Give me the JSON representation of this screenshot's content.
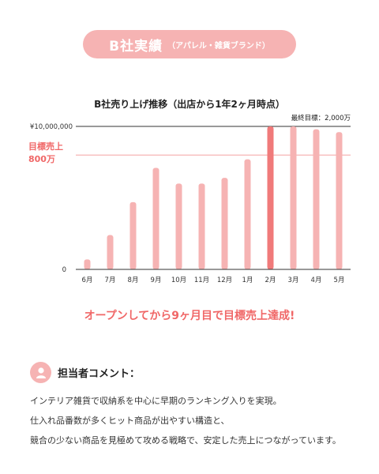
{
  "header": {
    "title": "B社実績",
    "subtitle": "（アパレル・雑貨ブランド）"
  },
  "chart_data": {
    "type": "bar",
    "title": "B社売り上げ推移（出店から1年2ヶ月時点）",
    "categories": [
      "6月",
      "7月",
      "8月",
      "9月",
      "10月",
      "11月",
      "12月",
      "1月",
      "2月",
      "3月",
      "4月",
      "5月"
    ],
    "values": [
      700000,
      2400000,
      4700000,
      7100000,
      6000000,
      6000000,
      6400000,
      7700000,
      10000000,
      10000000,
      9800000,
      9600000
    ],
    "ytick_labels": [
      "0",
      "¥10,000,000"
    ],
    "ylim": [
      0,
      10000000
    ],
    "reference_line": {
      "label": "目標売上",
      "value_label": "800万",
      "value": 8000000
    },
    "final_target": "最終目標：2,000万",
    "highlight_category": "2月",
    "colors": {
      "bar": "#f6b3b3",
      "highlight": "#f07a7a",
      "accent": "#f06767"
    }
  },
  "tagline": "オープンしてから9ヶ月目で目標売上達成!",
  "comment": {
    "icon": "person-icon",
    "title": "担当者コメント：",
    "lines": [
      "インテリア雑貨で収納系を中心に早期のランキング入りを実現。",
      "仕入れ品番数が多くヒット商品が出やすい構造と、",
      "競合の少ない商品を見極めて攻める戦略で、安定した売上につながっています。"
    ]
  }
}
